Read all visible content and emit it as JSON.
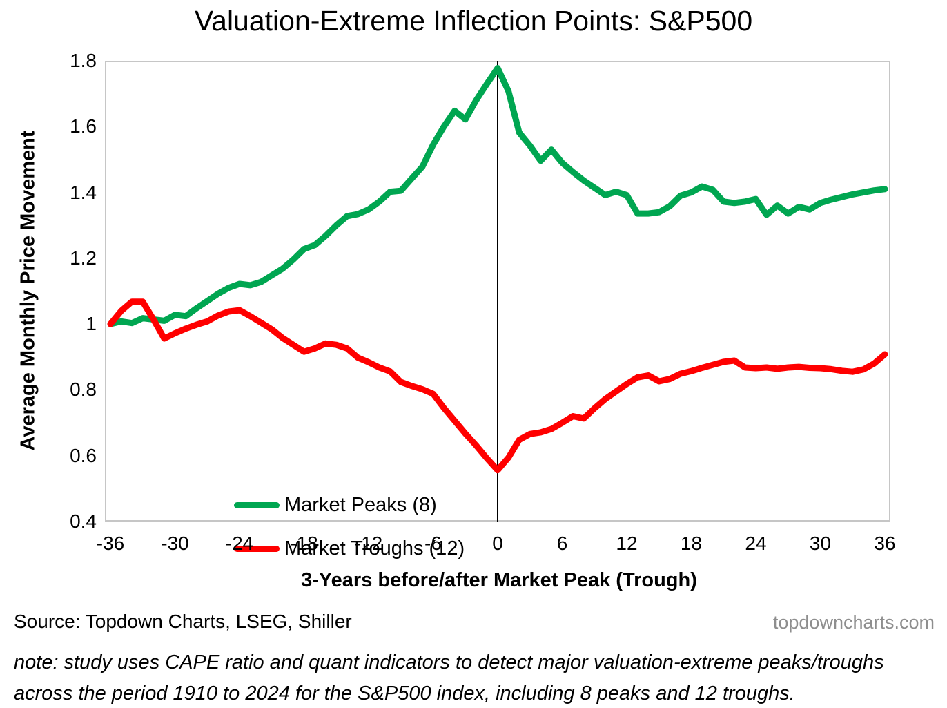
{
  "title": "Valuation-Extreme Inflection Points: S&P500",
  "y_axis": {
    "label": "Average Monthly Price Movement",
    "ticks": [
      "1.8",
      "1.6",
      "1.4",
      "1.2",
      "1",
      "0.8",
      "0.6",
      "0.4"
    ]
  },
  "x_axis": {
    "label": "3-Years before/after Market Peak (Trough)",
    "ticks": [
      "-36",
      "-30",
      "-24",
      "-18",
      "-12",
      "-6",
      "0",
      "6",
      "12",
      "18",
      "24",
      "30",
      "36"
    ]
  },
  "legend": {
    "items": [
      {
        "label": "Market Peaks (8)",
        "color": "#00A651"
      },
      {
        "label": "Market Troughs (12)",
        "color": "#FF0000"
      }
    ]
  },
  "footer": {
    "source": "Source: Topdown Charts, LSEG, Shiller",
    "watermark": "topdowncharts.com",
    "note_line1": "note: study uses CAPE ratio and quant indicators to detect major valuation-extreme peaks/troughs",
    "note_line2": "across the period 1910 to 2024 for the S&P500 index, including 8 peaks and 12 troughs."
  },
  "chart_data": {
    "type": "line",
    "title": "Valuation-Extreme Inflection Points: S&P500",
    "xlabel": "3-Years before/after Market Peak (Trough)",
    "ylabel": "Average Monthly Price Movement",
    "xlim": [
      -36,
      36
    ],
    "ylim": [
      0.4,
      1.8
    ],
    "grid": false,
    "legend_position": "inside-bottom-left",
    "annotations": [
      {
        "type": "vertical-line",
        "x": 0,
        "color": "#000000"
      }
    ],
    "x": [
      -36,
      -35,
      -34,
      -33,
      -32,
      -31,
      -30,
      -29,
      -28,
      -27,
      -26,
      -25,
      -24,
      -23,
      -22,
      -21,
      -20,
      -19,
      -18,
      -17,
      -16,
      -15,
      -14,
      -13,
      -12,
      -11,
      -10,
      -9,
      -8,
      -7,
      -6,
      -5,
      -4,
      -3,
      -2,
      -1,
      0,
      1,
      2,
      3,
      4,
      5,
      6,
      7,
      8,
      9,
      10,
      11,
      12,
      13,
      14,
      15,
      16,
      17,
      18,
      19,
      20,
      21,
      22,
      23,
      24,
      25,
      26,
      27,
      28,
      29,
      30,
      31,
      32,
      33,
      34,
      35,
      36
    ],
    "series": [
      {
        "name": "Market Peaks (8)",
        "color": "#00A651",
        "values": [
          1.0,
          1.008,
          1.003,
          1.018,
          1.014,
          1.01,
          1.028,
          1.024,
          1.048,
          1.07,
          1.092,
          1.11,
          1.122,
          1.118,
          1.128,
          1.148,
          1.168,
          1.196,
          1.228,
          1.24,
          1.268,
          1.3,
          1.328,
          1.334,
          1.348,
          1.372,
          1.402,
          1.405,
          1.442,
          1.478,
          1.545,
          1.6,
          1.648,
          1.622,
          1.68,
          1.73,
          1.778,
          1.708,
          1.582,
          1.542,
          1.496,
          1.53,
          1.49,
          1.462,
          1.436,
          1.414,
          1.392,
          1.402,
          1.392,
          1.336,
          1.336,
          1.34,
          1.358,
          1.39,
          1.4,
          1.418,
          1.408,
          1.372,
          1.368,
          1.372,
          1.38,
          1.332,
          1.36,
          1.336,
          1.356,
          1.348,
          1.368,
          1.378,
          1.386,
          1.394,
          1.4,
          1.406,
          1.41
        ]
      },
      {
        "name": "Market Troughs (12)",
        "color": "#FF0000",
        "values": [
          1.0,
          1.04,
          1.068,
          1.068,
          1.014,
          0.956,
          0.972,
          0.986,
          0.998,
          1.008,
          1.026,
          1.038,
          1.042,
          1.024,
          1.004,
          0.984,
          0.958,
          0.937,
          0.916,
          0.926,
          0.941,
          0.937,
          0.926,
          0.898,
          0.884,
          0.868,
          0.856,
          0.824,
          0.812,
          0.802,
          0.788,
          0.745,
          0.706,
          0.667,
          0.631,
          0.592,
          0.556,
          0.594,
          0.648,
          0.666,
          0.671,
          0.681,
          0.7,
          0.72,
          0.713,
          0.744,
          0.772,
          0.795,
          0.818,
          0.838,
          0.844,
          0.826,
          0.833,
          0.849,
          0.857,
          0.867,
          0.876,
          0.885,
          0.889,
          0.868,
          0.866,
          0.868,
          0.864,
          0.868,
          0.87,
          0.867,
          0.866,
          0.863,
          0.858,
          0.855,
          0.862,
          0.88,
          0.908
        ]
      }
    ]
  }
}
